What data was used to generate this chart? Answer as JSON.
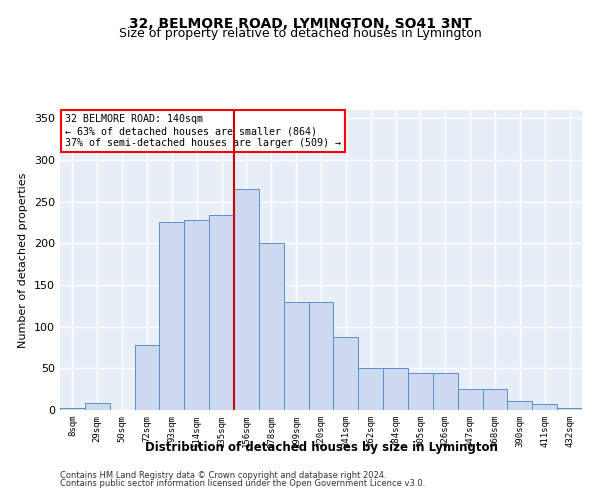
{
  "title": "32, BELMORE ROAD, LYMINGTON, SO41 3NT",
  "subtitle": "Size of property relative to detached houses in Lymington",
  "xlabel": "Distribution of detached houses by size in Lymington",
  "ylabel": "Number of detached properties",
  "categories": [
    "8sqm",
    "29sqm",
    "50sqm",
    "72sqm",
    "93sqm",
    "114sqm",
    "135sqm",
    "156sqm",
    "178sqm",
    "199sqm",
    "220sqm",
    "241sqm",
    "262sqm",
    "284sqm",
    "305sqm",
    "326sqm",
    "347sqm",
    "368sqm",
    "390sqm",
    "411sqm",
    "432sqm"
  ],
  "bar_heights": [
    2,
    8,
    0,
    78,
    226,
    228,
    234,
    265,
    200,
    130,
    130,
    88,
    50,
    50,
    45,
    44,
    25,
    25,
    11,
    7,
    3
  ],
  "bar_color": "#ccd9ef",
  "bar_edge_color": "#5b8fc9",
  "vline_color": "#cc0000",
  "annotation_title": "32 BELMORE ROAD: 140sqm",
  "annotation_line1": "← 63% of detached houses are smaller (864)",
  "annotation_line2": "37% of semi-detached houses are larger (509) →",
  "ylim": [
    0,
    360
  ],
  "yticks": [
    0,
    50,
    100,
    150,
    200,
    250,
    300,
    350
  ],
  "footnote1": "Contains HM Land Registry data © Crown copyright and database right 2024.",
  "footnote2": "Contains public sector information licensed under the Open Government Licence v3.0.",
  "bg_color": "#e8eef8",
  "grid_color": "#ffffff",
  "title_fontsize": 10,
  "subtitle_fontsize": 9
}
